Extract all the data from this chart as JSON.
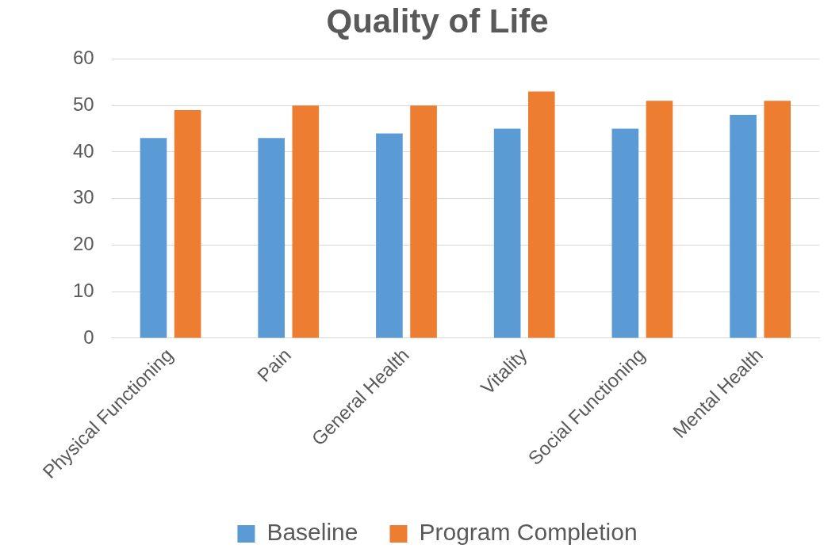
{
  "chart_data": {
    "type": "bar",
    "title": "Quality of Life",
    "categories": [
      "Physical Functioning",
      "Pain",
      "General Health",
      "Vitality",
      "Social Functioning",
      "Mental Health"
    ],
    "series": [
      {
        "name": "Baseline",
        "color": "#5b9bd5",
        "values": [
          43,
          43,
          44,
          45,
          45,
          48
        ]
      },
      {
        "name": "Program Completion",
        "color": "#ed7d31",
        "values": [
          49,
          50,
          50,
          53,
          51,
          51
        ]
      }
    ],
    "ylim": [
      0,
      60
    ],
    "yticks": [
      0,
      10,
      20,
      30,
      40,
      50,
      60
    ],
    "grid": "y",
    "legend": "bottom"
  }
}
